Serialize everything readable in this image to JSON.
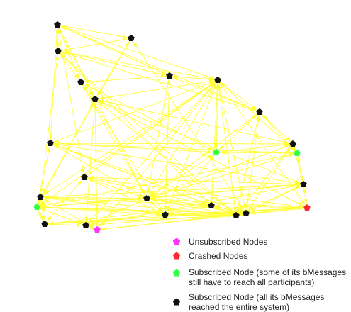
{
  "colors": {
    "edge": "#ffff33",
    "unsubscribed": "#ff33ff",
    "crashed": "#ff2a2a",
    "subscribed_pending": "#33ff44",
    "subscribed_complete": "#111111",
    "background": "#ffffff"
  },
  "legend": [
    {
      "label": "Unsubscribed Nodes",
      "status": "unsubscribed"
    },
    {
      "label": "Crashed Nodes",
      "status": "crashed"
    },
    {
      "label": "Subscribed Node (some of its bMessages\nstill have to reach all participants)",
      "status": "subscribed_pending"
    },
    {
      "label": "Subscribed Node (all its bMessages\nreached the entire system)",
      "status": "subscribed_complete"
    }
  ],
  "graph": {
    "nodes": [
      {
        "id": "n1",
        "status": "subscribed_complete"
      },
      {
        "id": "n2",
        "status": "subscribed_complete"
      },
      {
        "id": "n3",
        "status": "subscribed_complete"
      },
      {
        "id": "n4",
        "status": "subscribed_complete"
      },
      {
        "id": "n5",
        "status": "subscribed_complete"
      },
      {
        "id": "n6",
        "status": "subscribed_complete"
      },
      {
        "id": "n7",
        "status": "subscribed_complete"
      },
      {
        "id": "n8",
        "status": "subscribed_complete"
      },
      {
        "id": "n9",
        "status": "subscribed_pending"
      },
      {
        "id": "n10",
        "status": "subscribed_complete"
      },
      {
        "id": "n11",
        "status": "subscribed_pending"
      },
      {
        "id": "n12",
        "status": "subscribed_complete"
      },
      {
        "id": "n13",
        "status": "subscribed_complete"
      },
      {
        "id": "n14",
        "status": "crashed"
      },
      {
        "id": "n15",
        "status": "subscribed_complete"
      },
      {
        "id": "n16",
        "status": "subscribed_complete"
      },
      {
        "id": "n17",
        "status": "subscribed_complete"
      },
      {
        "id": "n18",
        "status": "subscribed_complete"
      },
      {
        "id": "n19",
        "status": "subscribed_complete"
      },
      {
        "id": "n20",
        "status": "subscribed_complete"
      },
      {
        "id": "n21",
        "status": "subscribed_complete"
      },
      {
        "id": "n22",
        "status": "subscribed_pending"
      },
      {
        "id": "n23",
        "status": "subscribed_complete"
      },
      {
        "id": "n24",
        "status": "subscribed_complete"
      },
      {
        "id": "n25",
        "status": "unsubscribed"
      }
    ],
    "edges": [
      [
        "n1",
        "n2"
      ],
      [
        "n1",
        "n3"
      ],
      [
        "n1",
        "n4"
      ],
      [
        "n1",
        "n5"
      ],
      [
        "n1",
        "n6"
      ],
      [
        "n1",
        "n7"
      ],
      [
        "n1",
        "n8"
      ],
      [
        "n1",
        "n12"
      ],
      [
        "n1",
        "n13"
      ],
      [
        "n1",
        "n16"
      ],
      [
        "n2",
        "n3"
      ],
      [
        "n2",
        "n5"
      ],
      [
        "n2",
        "n20"
      ],
      [
        "n2",
        "n21"
      ],
      [
        "n3",
        "n4"
      ],
      [
        "n3",
        "n6"
      ],
      [
        "n3",
        "n18"
      ],
      [
        "n3",
        "n19"
      ],
      [
        "n3",
        "n21"
      ],
      [
        "n3",
        "n7"
      ],
      [
        "n3",
        "n8"
      ],
      [
        "n4",
        "n5"
      ],
      [
        "n4",
        "n6"
      ],
      [
        "n4",
        "n9"
      ],
      [
        "n4",
        "n16"
      ],
      [
        "n4",
        "n17"
      ],
      [
        "n5",
        "n7"
      ],
      [
        "n5",
        "n10"
      ],
      [
        "n5",
        "n14"
      ],
      [
        "n5",
        "n15"
      ],
      [
        "n5",
        "n19"
      ],
      [
        "n5",
        "n22"
      ],
      [
        "n5",
        "n24"
      ],
      [
        "n5",
        "n25"
      ],
      [
        "n6",
        "n7"
      ],
      [
        "n6",
        "n8"
      ],
      [
        "n6",
        "n16"
      ],
      [
        "n6",
        "n17"
      ],
      [
        "n7",
        "n8"
      ],
      [
        "n7",
        "n9"
      ],
      [
        "n7",
        "n11"
      ],
      [
        "n7",
        "n12"
      ],
      [
        "n7",
        "n13"
      ],
      [
        "n7",
        "n14"
      ],
      [
        "n7",
        "n16"
      ],
      [
        "n7",
        "n17"
      ],
      [
        "n7",
        "n18"
      ],
      [
        "n7",
        "n19"
      ],
      [
        "n7",
        "n20"
      ],
      [
        "n7",
        "n21"
      ],
      [
        "n7",
        "n22"
      ],
      [
        "n7",
        "n24"
      ],
      [
        "n7",
        "n25"
      ],
      [
        "n8",
        "n9"
      ],
      [
        "n8",
        "n10"
      ],
      [
        "n8",
        "n11"
      ],
      [
        "n8",
        "n16"
      ],
      [
        "n8",
        "n19"
      ],
      [
        "n8",
        "n20"
      ],
      [
        "n9",
        "n10"
      ],
      [
        "n9",
        "n11"
      ],
      [
        "n9",
        "n12"
      ],
      [
        "n9",
        "n16"
      ],
      [
        "n9",
        "n17"
      ],
      [
        "n10",
        "n11"
      ],
      [
        "n10",
        "n12"
      ],
      [
        "n10",
        "n15"
      ],
      [
        "n10",
        "n16"
      ],
      [
        "n10",
        "n19"
      ],
      [
        "n10",
        "n20"
      ],
      [
        "n11",
        "n12"
      ],
      [
        "n11",
        "n15"
      ],
      [
        "n11",
        "n16"
      ],
      [
        "n11",
        "n22"
      ],
      [
        "n12",
        "n15"
      ],
      [
        "n12",
        "n16"
      ],
      [
        "n12",
        "n18"
      ],
      [
        "n12",
        "n19"
      ],
      [
        "n12",
        "n20"
      ],
      [
        "n12",
        "n22"
      ],
      [
        "n13",
        "n14"
      ],
      [
        "n13",
        "n15"
      ],
      [
        "n13",
        "n16"
      ],
      [
        "n13",
        "n17"
      ],
      [
        "n13",
        "n20"
      ],
      [
        "n13",
        "n23"
      ],
      [
        "n14",
        "n15"
      ],
      [
        "n14",
        "n16"
      ],
      [
        "n14",
        "n17"
      ],
      [
        "n14",
        "n18"
      ],
      [
        "n14",
        "n19"
      ],
      [
        "n14",
        "n20"
      ],
      [
        "n14",
        "n23"
      ],
      [
        "n14",
        "n25"
      ],
      [
        "n15",
        "n16"
      ],
      [
        "n15",
        "n19"
      ],
      [
        "n15",
        "n20"
      ],
      [
        "n15",
        "n21"
      ],
      [
        "n15",
        "n22"
      ],
      [
        "n15",
        "n24"
      ],
      [
        "n16",
        "n17"
      ],
      [
        "n16",
        "n18"
      ],
      [
        "n16",
        "n19"
      ],
      [
        "n16",
        "n20"
      ],
      [
        "n16",
        "n21"
      ],
      [
        "n16",
        "n22"
      ],
      [
        "n16",
        "n24"
      ],
      [
        "n17",
        "n18"
      ],
      [
        "n17",
        "n19"
      ],
      [
        "n17",
        "n20"
      ],
      [
        "n17",
        "n21"
      ],
      [
        "n17",
        "n22"
      ],
      [
        "n17",
        "n23"
      ],
      [
        "n18",
        "n19"
      ],
      [
        "n18",
        "n20"
      ],
      [
        "n18",
        "n21"
      ],
      [
        "n18",
        "n23"
      ],
      [
        "n19",
        "n20"
      ],
      [
        "n19",
        "n21"
      ],
      [
        "n19",
        "n22"
      ],
      [
        "n19",
        "n23"
      ],
      [
        "n20",
        "n22"
      ],
      [
        "n20",
        "n24"
      ],
      [
        "n20",
        "n25"
      ],
      [
        "n21",
        "n22"
      ],
      [
        "n21",
        "n23"
      ],
      [
        "n21",
        "n25"
      ],
      [
        "n22",
        "n23"
      ],
      [
        "n22",
        "n24"
      ],
      [
        "n23",
        "n24"
      ],
      [
        "n24",
        "n25"
      ]
    ]
  }
}
